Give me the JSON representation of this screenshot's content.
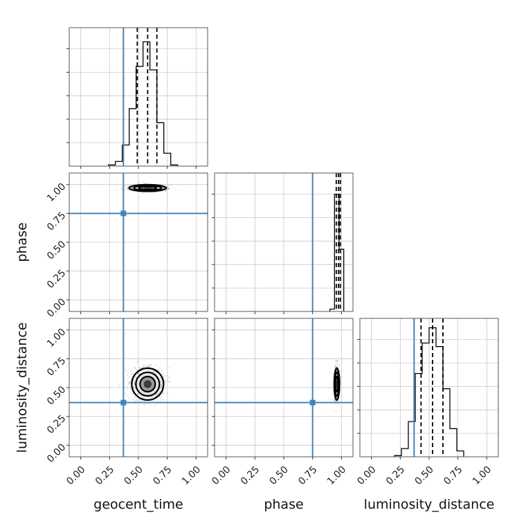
{
  "chart_data": {
    "type": "corner",
    "parameters": [
      "geocent_time",
      "phase",
      "luminosity_distance"
    ],
    "x_labels": [
      "geocent_time",
      "phase",
      "luminosity_distance"
    ],
    "y_labels": [
      "",
      "phase",
      "luminosity_distance"
    ],
    "truths": {
      "geocent_time": 0.37,
      "phase": 0.75,
      "luminosity_distance": 0.37
    },
    "tick_values": [
      0.0,
      0.25,
      0.5,
      0.75,
      1.0
    ],
    "tick_labels": [
      "0.00",
      "0.25",
      "0.50",
      "0.75",
      "1.00"
    ],
    "range": [
      -0.1,
      1.1
    ],
    "grid": true,
    "truth_color": "#4682b4",
    "histograms": {
      "geocent_time": {
        "bin_edges": [
          0.24,
          0.3,
          0.36,
          0.42,
          0.48,
          0.54,
          0.6,
          0.66,
          0.72,
          0.78,
          0.84
        ],
        "counts": [
          0.01,
          0.04,
          0.18,
          0.49,
          0.85,
          1.06,
          0.82,
          0.37,
          0.11,
          0.01
        ],
        "quantiles": [
          0.49,
          0.58,
          0.66
        ]
      },
      "phase": {
        "bin_edges": [
          0.9,
          0.94,
          0.98,
          1.02
        ],
        "counts": [
          0.02,
          1.0,
          0.53
        ],
        "quantiles": [
          0.955,
          0.975,
          0.99
        ]
      },
      "luminosity_distance": {
        "bin_edges": [
          0.2,
          0.26,
          0.32,
          0.38,
          0.44,
          0.5,
          0.56,
          0.62,
          0.68,
          0.74,
          0.8
        ],
        "counts": [
          0.01,
          0.07,
          0.3,
          0.71,
          0.97,
          1.1,
          0.94,
          0.58,
          0.24,
          0.05
        ],
        "quantiles": [
          0.43,
          0.53,
          0.62
        ]
      }
    },
    "density_2d": [
      {
        "x": "geocent_time",
        "y": "phase",
        "center": [
          0.58,
          0.97
        ],
        "spread": [
          0.14,
          0.025
        ]
      },
      {
        "x": "geocent_time",
        "y": "luminosity_distance",
        "center": [
          0.58,
          0.53
        ],
        "spread": [
          0.12,
          0.12
        ]
      },
      {
        "x": "phase",
        "y": "luminosity_distance",
        "center": [
          0.96,
          0.53
        ],
        "spread": [
          0.02,
          0.12
        ]
      }
    ]
  }
}
